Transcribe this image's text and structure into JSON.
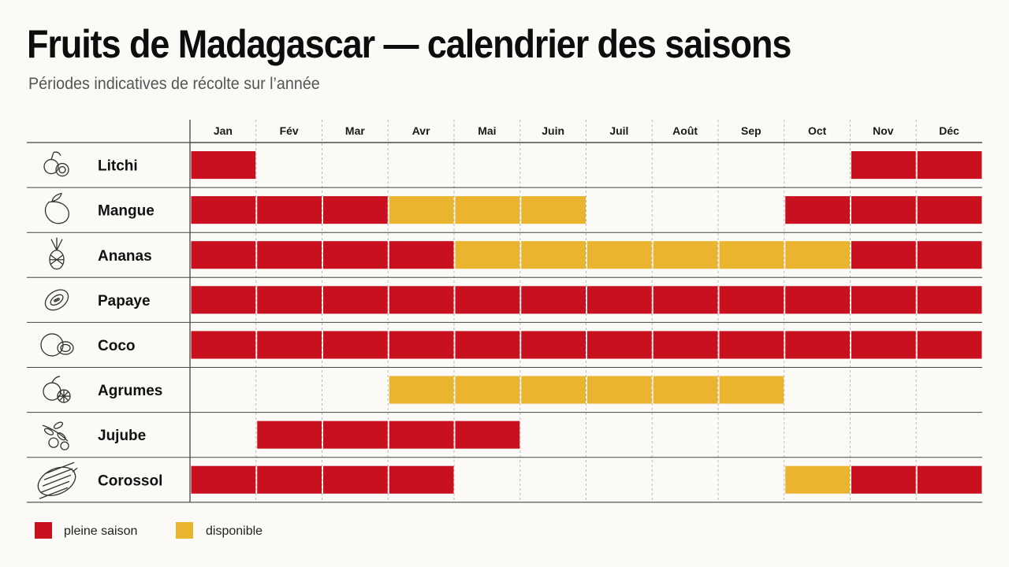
{
  "title": "Fruits de Madagascar — calendrier des saisons",
  "subtitle": "Périodes indicatives de récolte sur l’année",
  "colors": {
    "pleine": "#c8101f",
    "disponible": "#ebb42e",
    "grid": "#b9b9b9",
    "axis": "#444444"
  },
  "chart_data": {
    "type": "heatmap",
    "title": "Fruits de Madagascar — calendrier des saisons",
    "subtitle": "Périodes indicatives de récolte sur l’année",
    "months": [
      "Jan",
      "Fév",
      "Mar",
      "Avr",
      "Mai",
      "Juin",
      "Juil",
      "Août",
      "Sep",
      "Oct",
      "Nov",
      "Déc"
    ],
    "legend": [
      {
        "key": "P",
        "label": "pleine saison",
        "color": "#c8101f"
      },
      {
        "key": "D",
        "label": "disponible",
        "color": "#ebb42e"
      }
    ],
    "rows": [
      {
        "fruit": "Litchi",
        "icon": "litchi-icon",
        "months": [
          "P",
          "",
          "",
          "",
          "",
          "",
          "",
          "",
          "",
          "",
          "P",
          "P"
        ]
      },
      {
        "fruit": "Mangue",
        "icon": "mango-icon",
        "months": [
          "P",
          "P",
          "P",
          "D",
          "D",
          "D",
          "",
          "",
          "",
          "P",
          "P",
          "P"
        ]
      },
      {
        "fruit": "Ananas",
        "icon": "pineapple-icon",
        "months": [
          "P",
          "P",
          "P",
          "P",
          "D",
          "D",
          "D",
          "D",
          "D",
          "D",
          "P",
          "P"
        ]
      },
      {
        "fruit": "Papaye",
        "icon": "papaya-icon",
        "months": [
          "P",
          "P",
          "P",
          "P",
          "P",
          "P",
          "P",
          "P",
          "P",
          "P",
          "P",
          "P"
        ]
      },
      {
        "fruit": "Coco",
        "icon": "coconut-icon",
        "months": [
          "P",
          "P",
          "P",
          "P",
          "P",
          "P",
          "P",
          "P",
          "P",
          "P",
          "P",
          "P"
        ]
      },
      {
        "fruit": "Agrumes",
        "icon": "citrus-icon",
        "months": [
          "",
          "",
          "",
          "D",
          "D",
          "D",
          "D",
          "D",
          "D",
          "",
          "",
          ""
        ]
      },
      {
        "fruit": "Jujube",
        "icon": "jujube-icon",
        "months": [
          "",
          "P",
          "P",
          "P",
          "P",
          "",
          "",
          "",
          "",
          "",
          "",
          ""
        ]
      },
      {
        "fruit": "Corossol",
        "icon": "soursop-icon",
        "months": [
          "P",
          "P",
          "P",
          "P",
          "",
          "",
          "",
          "",
          "",
          "D",
          "P",
          "P"
        ]
      }
    ]
  }
}
